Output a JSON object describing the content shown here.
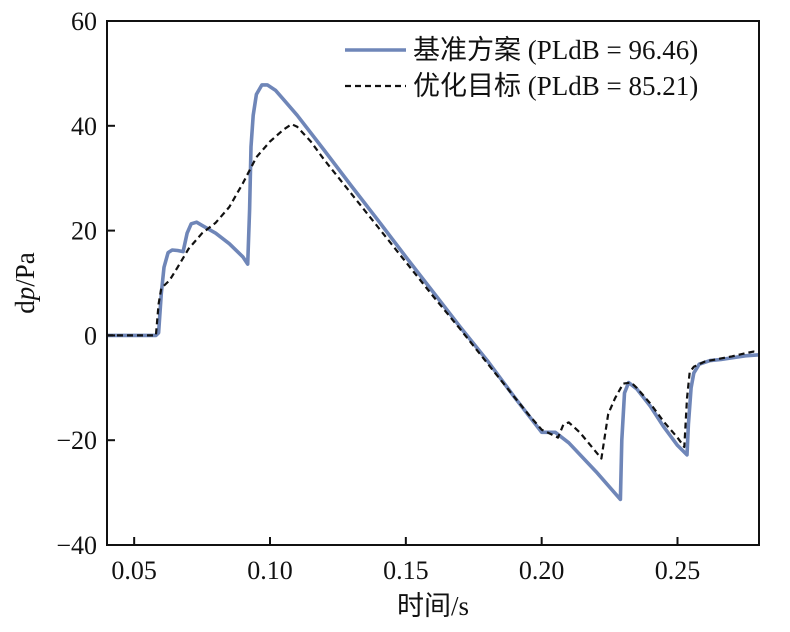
{
  "chart_data": {
    "type": "line",
    "xlabel": "时间/s",
    "ylabel": "dp/Pa",
    "ylabel_parts": {
      "prefix": "d",
      "italic": "p",
      "suffix": "/Pa"
    },
    "xlim": [
      0.04,
      0.28
    ],
    "ylim": [
      -40,
      60
    ],
    "xticks": [
      0.05,
      0.1,
      0.15,
      0.2,
      0.25
    ],
    "xtick_labels": [
      "0.05",
      "0.10",
      "0.15",
      "0.20",
      "0.25"
    ],
    "yticks": [
      -40,
      -20,
      0,
      20,
      40,
      60
    ],
    "ytick_labels": [
      "−40",
      "−20",
      "0",
      "20",
      "40",
      "60"
    ],
    "grid": false,
    "legend_position": "top-right",
    "series": [
      {
        "name": "基准方案 (PLdB = 96.46)",
        "color": "#6f86b8",
        "style": "solid",
        "points": [
          [
            0.04,
            0
          ],
          [
            0.058,
            0
          ],
          [
            0.059,
            0.5
          ],
          [
            0.06,
            8
          ],
          [
            0.061,
            13
          ],
          [
            0.0625,
            15.8
          ],
          [
            0.064,
            16.3
          ],
          [
            0.066,
            16.2
          ],
          [
            0.068,
            16
          ],
          [
            0.0695,
            19.5
          ],
          [
            0.071,
            21.3
          ],
          [
            0.073,
            21.6
          ],
          [
            0.075,
            21
          ],
          [
            0.08,
            19.5
          ],
          [
            0.085,
            17.5
          ],
          [
            0.09,
            15
          ],
          [
            0.0918,
            13.6
          ],
          [
            0.0925,
            24
          ],
          [
            0.093,
            36
          ],
          [
            0.0938,
            42
          ],
          [
            0.095,
            46
          ],
          [
            0.097,
            47.8
          ],
          [
            0.099,
            47.8
          ],
          [
            0.102,
            46.8
          ],
          [
            0.105,
            45
          ],
          [
            0.11,
            42
          ],
          [
            0.12,
            35.3
          ],
          [
            0.13,
            28.5
          ],
          [
            0.14,
            21.8
          ],
          [
            0.15,
            15
          ],
          [
            0.16,
            8.3
          ],
          [
            0.17,
            1.6
          ],
          [
            0.18,
            -4.8
          ],
          [
            0.19,
            -11.8
          ],
          [
            0.2,
            -18.5
          ],
          [
            0.205,
            -18.5
          ],
          [
            0.21,
            -20.5
          ],
          [
            0.22,
            -26
          ],
          [
            0.229,
            -31.3
          ],
          [
            0.2295,
            -20
          ],
          [
            0.2305,
            -11
          ],
          [
            0.232,
            -9
          ],
          [
            0.235,
            -10.2
          ],
          [
            0.24,
            -13.5
          ],
          [
            0.245,
            -17.5
          ],
          [
            0.25,
            -21
          ],
          [
            0.2535,
            -22.8
          ],
          [
            0.254,
            -17
          ],
          [
            0.255,
            -10
          ],
          [
            0.256,
            -7.2
          ],
          [
            0.258,
            -5.5
          ],
          [
            0.262,
            -4.8
          ],
          [
            0.266,
            -4.6
          ],
          [
            0.27,
            -4.3
          ],
          [
            0.275,
            -3.9
          ],
          [
            0.28,
            -3.7
          ]
        ]
      },
      {
        "name": "优化目标 (PLdB = 85.21)",
        "color": "#111111",
        "style": "dashed",
        "points": [
          [
            0.04,
            0
          ],
          [
            0.058,
            0
          ],
          [
            0.059,
            6
          ],
          [
            0.06,
            9
          ],
          [
            0.063,
            10.5
          ],
          [
            0.066,
            13
          ],
          [
            0.07,
            16.5
          ],
          [
            0.075,
            19.5
          ],
          [
            0.08,
            21.5
          ],
          [
            0.085,
            24.5
          ],
          [
            0.09,
            29
          ],
          [
            0.095,
            34
          ],
          [
            0.1,
            37
          ],
          [
            0.105,
            39.3
          ],
          [
            0.108,
            40.3
          ],
          [
            0.11,
            39.8
          ],
          [
            0.115,
            37
          ],
          [
            0.12,
            33.5
          ],
          [
            0.13,
            27
          ],
          [
            0.14,
            20.5
          ],
          [
            0.15,
            14
          ],
          [
            0.16,
            7.5
          ],
          [
            0.17,
            1.2
          ],
          [
            0.18,
            -5.3
          ],
          [
            0.19,
            -11.8
          ],
          [
            0.195,
            -15
          ],
          [
            0.2,
            -18
          ],
          [
            0.202,
            -18.5
          ],
          [
            0.206,
            -19.5
          ],
          [
            0.208,
            -17
          ],
          [
            0.21,
            -16.6
          ],
          [
            0.214,
            -18.5
          ],
          [
            0.218,
            -21
          ],
          [
            0.222,
            -23.5
          ],
          [
            0.2245,
            -15
          ],
          [
            0.227,
            -12
          ],
          [
            0.23,
            -9.2
          ],
          [
            0.233,
            -9
          ],
          [
            0.235,
            -10
          ],
          [
            0.24,
            -13
          ],
          [
            0.245,
            -16.5
          ],
          [
            0.25,
            -19.5
          ],
          [
            0.2525,
            -21.3
          ],
          [
            0.2535,
            -12
          ],
          [
            0.2545,
            -7
          ],
          [
            0.256,
            -6
          ],
          [
            0.26,
            -5
          ],
          [
            0.265,
            -4.5
          ],
          [
            0.27,
            -4
          ],
          [
            0.275,
            -3.4
          ],
          [
            0.278,
            -3.1
          ],
          [
            0.28,
            -3.3
          ]
        ]
      }
    ]
  }
}
